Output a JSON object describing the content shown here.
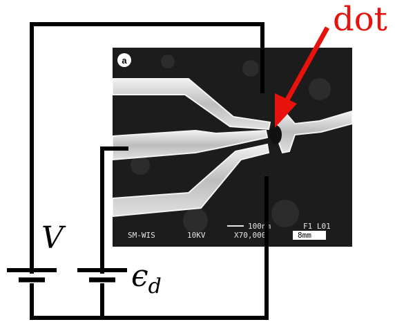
{
  "labels": {
    "dot": "dot",
    "voltage": "V",
    "epsilon": "ϵ",
    "epsilon_subscript": "d"
  },
  "sem_image": {
    "panel_letter": "a",
    "info_bar": {
      "left_text": "SM-WIS",
      "voltage": "10KV",
      "magnification": "X70,000",
      "scale_text": "100nm",
      "scale_box": "8mm",
      "frame_id": "F1 L01"
    }
  },
  "colors": {
    "wire": "#000000",
    "arrow": "#e8120c",
    "dot_label": "#e8120c",
    "sem_background": "#1c1c1c",
    "sem_gate": "#cfcfcf"
  }
}
